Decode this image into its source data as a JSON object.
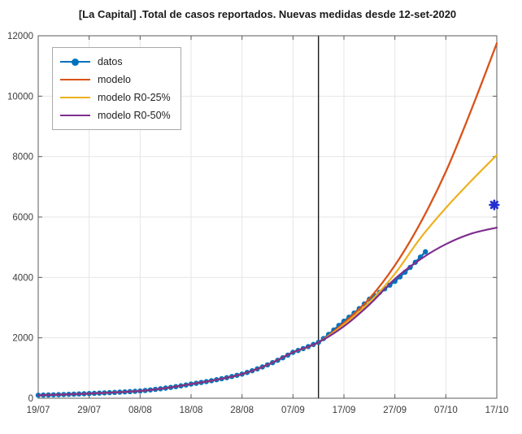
{
  "chart_data": {
    "type": "line",
    "title": "[La Capital] .Total de casos reportados. Nuevas medidas desde 12-set-2020",
    "grid": true,
    "legend_position": "top-left",
    "colors": {
      "datos": "#0072BD",
      "modelo": "#D95319",
      "modelo_r0_25": "#EDB120",
      "modelo_r0_50": "#7E2F8E",
      "extra_point": "#2230CF",
      "vertical_line": "#1a1a1a"
    },
    "x_axis": {
      "tick_labels": [
        "19/07",
        "29/07",
        "08/08",
        "18/08",
        "28/08",
        "07/09",
        "17/09",
        "27/09",
        "07/10",
        "17/10"
      ],
      "tick_days": [
        0,
        10,
        20,
        30,
        40,
        50,
        60,
        70,
        80,
        90
      ],
      "range_days": [
        0,
        90
      ]
    },
    "y_axis": {
      "tick_labels": [
        "0",
        "2000",
        "4000",
        "6000",
        "8000",
        "10000",
        "12000"
      ],
      "ticks": [
        0,
        2000,
        4000,
        6000,
        8000,
        10000,
        12000
      ],
      "range": [
        0,
        12000
      ]
    },
    "vertical_line": {
      "at_day": 55,
      "date": "12/09",
      "color": "#1a1a1a"
    },
    "series": [
      {
        "name": "datos",
        "style": "line+markers",
        "marker": "circle",
        "color": "#0072BD",
        "line_width": 2.4,
        "x_days": [
          0,
          1,
          2,
          3,
          4,
          5,
          6,
          7,
          8,
          9,
          10,
          11,
          12,
          13,
          14,
          15,
          16,
          17,
          18,
          19,
          20,
          21,
          22,
          23,
          24,
          25,
          26,
          27,
          28,
          29,
          30,
          31,
          32,
          33,
          34,
          35,
          36,
          37,
          38,
          39,
          40,
          41,
          42,
          43,
          44,
          45,
          46,
          47,
          48,
          49,
          50,
          51,
          52,
          53,
          54,
          55,
          56,
          57,
          58,
          59,
          60,
          61,
          62,
          63,
          64,
          65,
          66,
          67,
          68,
          69,
          70,
          71,
          72,
          73,
          74,
          75,
          76
        ],
        "values": [
          100,
          105,
          109,
          114,
          119,
          124,
          130,
          136,
          142,
          148,
          155,
          162,
          169,
          177,
          185,
          193,
          202,
          211,
          220,
          230,
          240,
          257,
          275,
          294,
          314,
          336,
          359,
          384,
          411,
          440,
          470,
          496,
          523,
          551,
          581,
          613,
          647,
          682,
          719,
          759,
          800,
          854,
          911,
          972,
          1037,
          1106,
          1179,
          1257,
          1340,
          1429,
          1520,
          1581,
          1644,
          1710,
          1779,
          1850,
          1977,
          2112,
          2257,
          2411,
          2550,
          2682,
          2821,
          2967,
          3121,
          3280,
          3391,
          3505,
          3623,
          3745,
          3870,
          4019,
          4173,
          4333,
          4500,
          4672,
          4850
        ]
      },
      {
        "name": "modelo",
        "style": "line",
        "color": "#D95319",
        "line_width": 2.3,
        "x_days": [
          0,
          5,
          10,
          15,
          20,
          25,
          30,
          35,
          40,
          45,
          50,
          55,
          60,
          65,
          70,
          75,
          80,
          85,
          90
        ],
        "values": [
          100,
          124,
          155,
          193,
          240,
          336,
          470,
          613,
          800,
          1106,
          1520,
          1850,
          2500,
          3300,
          4400,
          5800,
          7500,
          9550,
          11750
        ]
      },
      {
        "name": "modelo R0-25%",
        "style": "line",
        "color": "#EDB120",
        "line_width": 2.2,
        "x_days": [
          0,
          5,
          10,
          15,
          20,
          25,
          30,
          35,
          40,
          45,
          50,
          55,
          60,
          65,
          70,
          75,
          80,
          85,
          90
        ],
        "values": [
          100,
          124,
          155,
          193,
          240,
          336,
          470,
          613,
          800,
          1106,
          1520,
          1850,
          2440,
          3180,
          4120,
          5300,
          6300,
          7200,
          8050
        ]
      },
      {
        "name": "modelo R0-50%",
        "style": "line",
        "color": "#7E2F8E",
        "line_width": 2.2,
        "x_days": [
          0,
          5,
          10,
          15,
          20,
          25,
          30,
          35,
          40,
          45,
          50,
          55,
          60,
          65,
          70,
          75,
          80,
          85,
          90
        ],
        "values": [
          100,
          124,
          155,
          193,
          240,
          336,
          470,
          613,
          800,
          1106,
          1520,
          1850,
          2380,
          3100,
          3950,
          4600,
          5100,
          5450,
          5650
        ]
      }
    ],
    "extra_point": {
      "x_day": 89.5,
      "date": "17/10",
      "value": 6400,
      "marker": "asterisk",
      "color": "#2230CF"
    }
  }
}
